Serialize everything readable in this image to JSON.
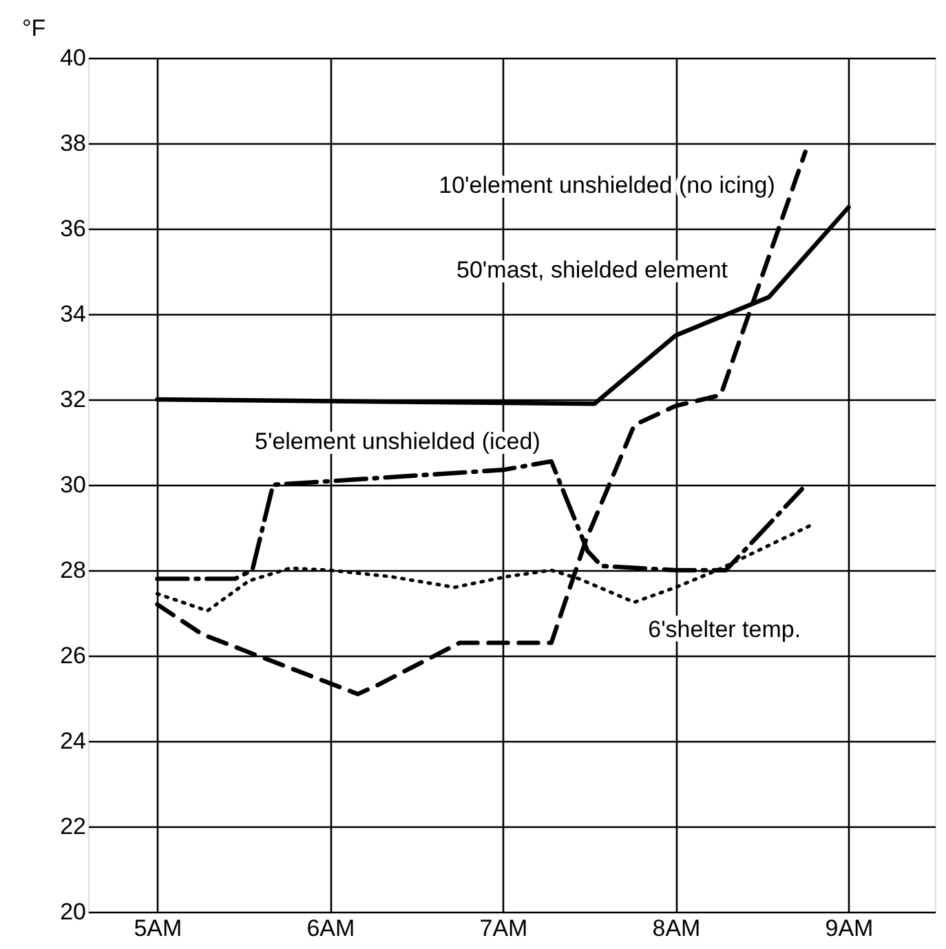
{
  "chart_data": {
    "type": "line",
    "ylabel": "°F",
    "xlim": [
      4.6,
      9.5
    ],
    "xticks": [
      {
        "value": 5,
        "label": "5AM"
      },
      {
        "value": 6,
        "label": "6AM"
      },
      {
        "value": 7,
        "label": "7AM"
      },
      {
        "value": 8,
        "label": "8AM"
      },
      {
        "value": 9,
        "label": "9AM"
      }
    ],
    "ylim": [
      20,
      40
    ],
    "yticks": [
      20,
      22,
      24,
      26,
      28,
      30,
      32,
      34,
      36,
      38,
      40
    ],
    "grid": true,
    "legend": false,
    "marker": "none",
    "series": [
      {
        "name": "10'element unshielded (no icing)",
        "color": "#000000",
        "line_style": "dashed",
        "x": [
          5.0,
          5.26,
          5.58,
          6.0,
          6.16,
          6.27,
          6.75,
          7.0,
          7.28,
          7.48,
          7.76,
          8.0,
          8.26,
          8.75
        ],
        "values": [
          27.2,
          26.5,
          26.0,
          25.35,
          25.1,
          25.3,
          26.3,
          26.3,
          26.3,
          28.7,
          31.4,
          31.85,
          32.1,
          37.8
        ]
      },
      {
        "name": "50'mast, shielded element",
        "color": "#000000",
        "line_style": "solid",
        "x": [
          5.0,
          7.53,
          8.0,
          8.54,
          9.0
        ],
        "values": [
          32.0,
          31.9,
          33.5,
          34.4,
          36.5
        ]
      },
      {
        "name": "5'element unshielded (iced)",
        "color": "#000000",
        "line_style": "dashdot",
        "x": [
          5.0,
          5.45,
          5.55,
          5.67,
          7.0,
          7.28,
          7.49,
          7.57,
          8.0,
          8.29,
          8.73
        ],
        "values": [
          27.8,
          27.8,
          28.0,
          30.0,
          30.35,
          30.55,
          28.45,
          28.1,
          28.0,
          28.0,
          29.9
        ]
      },
      {
        "name": "6'shelter temp.",
        "color": "#000000",
        "line_style": "dotted",
        "x": [
          5.0,
          5.29,
          5.53,
          5.77,
          6.0,
          6.35,
          6.72,
          7.02,
          7.28,
          7.44,
          7.76,
          8.0,
          8.24,
          8.78
        ],
        "values": [
          27.45,
          27.05,
          27.75,
          28.05,
          28.0,
          27.85,
          27.6,
          27.85,
          28.0,
          27.8,
          27.25,
          27.6,
          28.0,
          29.05
        ]
      }
    ]
  }
}
